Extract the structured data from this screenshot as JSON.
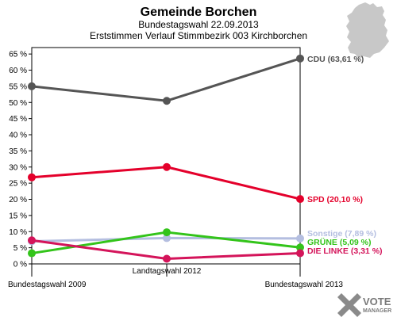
{
  "chart_data": {
    "type": "line",
    "title": "Gemeinde Borchen",
    "subtitle": "Bundestagswahl 22.09.2013",
    "subtitle2": "Erststimmen Verlauf Stimmbezirk 003 Kirchborchen",
    "categories": [
      "Bundestagswahl 2009",
      "Landtagswahl 2012",
      "Bundestagswahl 2013"
    ],
    "ylim": [
      0,
      67
    ],
    "yticks": [
      0,
      5,
      10,
      15,
      20,
      25,
      30,
      35,
      40,
      45,
      50,
      55,
      60,
      65
    ],
    "ytick_labels": [
      "0 %",
      "5 %",
      "10 %",
      "15 %",
      "20 %",
      "25 %",
      "30 %",
      "35 %",
      "40 %",
      "45 %",
      "50 %",
      "55 %",
      "60 %",
      "65 %"
    ],
    "grid": false,
    "series": [
      {
        "name": "CDU",
        "color": "#555555",
        "values": [
          55.0,
          50.5,
          63.61
        ],
        "label": "CDU (63,61 %)"
      },
      {
        "name": "SPD",
        "color": "#e4002b",
        "values": [
          26.8,
          30.0,
          20.1
        ],
        "label": "SPD (20,10 %)"
      },
      {
        "name": "Sonstige",
        "color": "#b4bee0",
        "values": [
          7.0,
          8.0,
          7.89
        ],
        "label": "Sonstige (7,89 %)"
      },
      {
        "name": "GRÜNE",
        "color": "#33c41a",
        "values": [
          3.3,
          9.8,
          5.09
        ],
        "label": "GRÜNE (5,09 %)"
      },
      {
        "name": "DIE LINKE",
        "color": "#d4145a",
        "values": [
          7.3,
          1.6,
          3.31
        ],
        "label": "DIE LINKE (3,31 %)"
      }
    ]
  },
  "logo": {
    "line1": "VOTE",
    "line2": "MANAGER"
  },
  "colors": {
    "axis": "#000000",
    "map": "#c8c8c8"
  }
}
